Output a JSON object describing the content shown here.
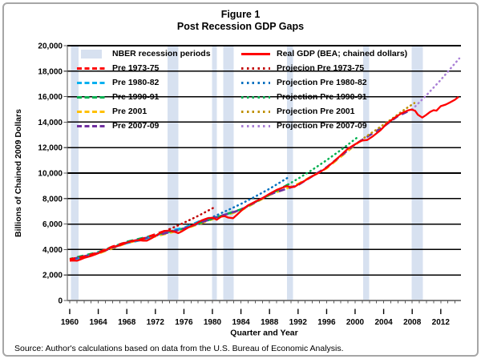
{
  "figure": {
    "title_line1": "Figure 1",
    "title_line2": "Post Recession GDP Gaps",
    "source": "Source: Author's calculations based on data from the U.S. Bureau of Economic Analysis."
  },
  "chart_data": {
    "type": "line",
    "title": "Figure 1 - Post Recession GDP Gaps",
    "xlabel": "Quarter and Year",
    "ylabel": "Billions of Chained 2009 Dollars",
    "x_quarter_marker": "I",
    "xlim": [
      1959.7,
      2014.9
    ],
    "ylim": [
      0,
      20000
    ],
    "grid": "horizontal-black",
    "legend_position": "top-inside-two-columns",
    "band_color": "#D7E1F0",
    "y_ticks": [
      {
        "value": 0,
        "label": "0"
      },
      {
        "value": 2000,
        "label": "2,000"
      },
      {
        "value": 4000,
        "label": "4,000"
      },
      {
        "value": 6000,
        "label": "6,000"
      },
      {
        "value": 8000,
        "label": "8,000"
      },
      {
        "value": 10000,
        "label": "10,000"
      },
      {
        "value": 12000,
        "label": "12,000"
      },
      {
        "value": 14000,
        "label": "14,000"
      },
      {
        "value": 16000,
        "label": "16,000"
      },
      {
        "value": 18000,
        "label": "18,000"
      },
      {
        "value": 20000,
        "label": "20,000"
      }
    ],
    "x_ticks": [
      {
        "value": 1960,
        "label": "1960"
      },
      {
        "value": 1964,
        "label": "1964"
      },
      {
        "value": 1968,
        "label": "1968"
      },
      {
        "value": 1972,
        "label": "1972"
      },
      {
        "value": 1976,
        "label": "1976"
      },
      {
        "value": 1980,
        "label": "1980"
      },
      {
        "value": 1984,
        "label": "1984"
      },
      {
        "value": 1988,
        "label": "1988"
      },
      {
        "value": 1992,
        "label": "1992"
      },
      {
        "value": 1996,
        "label": "1996"
      },
      {
        "value": 2000,
        "label": "2000"
      },
      {
        "value": 2004,
        "label": "2004"
      },
      {
        "value": 2008,
        "label": "2008"
      },
      {
        "value": 2012,
        "label": "2012"
      }
    ],
    "x_minor_tick_step_years": 1,
    "recession_bands": [
      [
        1960.15,
        1961.25
      ],
      [
        1973.7,
        1975.25
      ],
      [
        1979.95,
        1980.6
      ],
      [
        1981.5,
        1983.0
      ],
      [
        1990.45,
        1991.3
      ],
      [
        2001.15,
        2001.95
      ],
      [
        2007.9,
        2009.5
      ]
    ],
    "series": [
      {
        "name": "pre-2001-trend",
        "label": "Pre 2001",
        "color": "#FFC000",
        "style": "dash",
        "points": [
          [
            1960,
            3150
          ],
          [
            1964,
            3680
          ],
          [
            1968,
            4510
          ],
          [
            1972,
            5030
          ],
          [
            1976,
            5590
          ],
          [
            1980,
            6380
          ],
          [
            1984,
            7060
          ],
          [
            1988,
            8280
          ],
          [
            1992,
            9150
          ],
          [
            1996,
            10380
          ],
          [
            2000,
            12200
          ],
          [
            2001.3,
            12780
          ]
        ]
      },
      {
        "name": "pre-1990-91-trend",
        "label": "Pre 1990-91",
        "color": "#00B050",
        "style": "dash",
        "points": [
          [
            1960,
            3260
          ],
          [
            1964,
            3800
          ],
          [
            1968,
            4610
          ],
          [
            1972,
            5140
          ],
          [
            1976,
            5660
          ],
          [
            1980,
            6420
          ],
          [
            1984,
            7150
          ],
          [
            1988,
            8310
          ],
          [
            1990.6,
            9100
          ]
        ]
      },
      {
        "name": "pre-1980-82-trend",
        "label": "Pre 1980-82",
        "color": "#00B0F0",
        "style": "dash",
        "points": [
          [
            1960,
            3180
          ],
          [
            1962,
            3370
          ],
          [
            1964,
            3740
          ],
          [
            1966,
            4170
          ],
          [
            1968,
            4500
          ],
          [
            1970,
            4740
          ],
          [
            1972,
            5090
          ],
          [
            1974,
            5480
          ],
          [
            1976,
            5700
          ],
          [
            1978,
            6180
          ],
          [
            1980.2,
            6600
          ]
        ]
      },
      {
        "name": "pre-2007-09-trend",
        "label": "Pre 2007-09",
        "color": "#7030A0",
        "style": "dash",
        "points": [
          [
            1960,
            3210
          ],
          [
            1964,
            3730
          ],
          [
            1968,
            4560
          ],
          [
            1972,
            5080
          ],
          [
            1976,
            5640
          ],
          [
            1980,
            6440
          ],
          [
            1984,
            7120
          ],
          [
            1988,
            8330
          ],
          [
            1992,
            9060
          ],
          [
            1996,
            10450
          ],
          [
            2000,
            12260
          ],
          [
            2004,
            13660
          ],
          [
            2006,
            14480
          ],
          [
            2008,
            15000
          ]
        ]
      },
      {
        "name": "pre-1973-75-trend",
        "label": "Pre 1973-75",
        "color": "#FF0000",
        "style": "dash",
        "points": [
          [
            1960,
            3230
          ],
          [
            1962,
            3450
          ],
          [
            1964,
            3770
          ],
          [
            1966,
            4230
          ],
          [
            1968,
            4580
          ],
          [
            1970,
            4800
          ],
          [
            1972,
            5200
          ],
          [
            1974,
            5600
          ]
        ]
      },
      {
        "name": "projection-pre-1973-75",
        "label": "Projecion Pre 1973-75",
        "color": "#C00000",
        "style": "dot",
        "points": [
          [
            1974,
            5600
          ],
          [
            1976,
            6100
          ],
          [
            1978,
            6640
          ],
          [
            1980.3,
            7320
          ]
        ]
      },
      {
        "name": "projection-pre-1980-82",
        "label": "Projection Pre 1980-82",
        "color": "#0070C0",
        "style": "dot",
        "points": [
          [
            1980.2,
            6600
          ],
          [
            1982,
            7050
          ],
          [
            1984,
            7580
          ],
          [
            1986,
            8160
          ],
          [
            1988,
            8770
          ],
          [
            1990.6,
            9650
          ]
        ]
      },
      {
        "name": "projection-pre-1990-91",
        "label": "Projection Pre 1990-91",
        "color": "#00B050",
        "style": "dot",
        "points": [
          [
            1990.6,
            9100
          ],
          [
            1992,
            9560
          ],
          [
            1994,
            10260
          ],
          [
            1996,
            11010
          ],
          [
            1998,
            11810
          ],
          [
            2000.3,
            12800
          ]
        ]
      },
      {
        "name": "projection-pre-2001",
        "label": "Projection Pre 2001",
        "color": "#BF9000",
        "style": "dot",
        "points": [
          [
            2001.3,
            12780
          ],
          [
            2003,
            13420
          ],
          [
            2005,
            14200
          ],
          [
            2007,
            15020
          ],
          [
            2008.3,
            15500
          ]
        ]
      },
      {
        "name": "projection-pre-2007-09",
        "label": "Projection Pre 2007-09",
        "color": "#A97FD6",
        "style": "dot",
        "points": [
          [
            2008,
            15000
          ],
          [
            2010,
            16115
          ],
          [
            2012,
            17315
          ],
          [
            2014.6,
            19000
          ]
        ]
      },
      {
        "name": "real-gdp",
        "label": "Real GDP (BEA; chained dollars)",
        "color": "#FF0000",
        "style": "solid",
        "points": [
          [
            1960,
            3120
          ],
          [
            1960.5,
            3140
          ],
          [
            1961,
            3120
          ],
          [
            1961.5,
            3220
          ],
          [
            1962,
            3340
          ],
          [
            1963,
            3500
          ],
          [
            1964,
            3710
          ],
          [
            1965,
            3950
          ],
          [
            1966,
            4200
          ],
          [
            1967,
            4330
          ],
          [
            1968,
            4540
          ],
          [
            1969,
            4700
          ],
          [
            1969.8,
            4730
          ],
          [
            1970.3,
            4700
          ],
          [
            1970.8,
            4690
          ],
          [
            1971.5,
            4900
          ],
          [
            1972,
            5060
          ],
          [
            1972.7,
            5290
          ],
          [
            1973.3,
            5460
          ],
          [
            1973.8,
            5480
          ],
          [
            1974.3,
            5440
          ],
          [
            1974.8,
            5380
          ],
          [
            1975.2,
            5290
          ],
          [
            1975.7,
            5420
          ],
          [
            1976.5,
            5690
          ],
          [
            1977.5,
            5970
          ],
          [
            1978.5,
            6290
          ],
          [
            1979.3,
            6450
          ],
          [
            1980.1,
            6500
          ],
          [
            1980.6,
            6340
          ],
          [
            1981.2,
            6580
          ],
          [
            1981.7,
            6620
          ],
          [
            1982.2,
            6510
          ],
          [
            1982.9,
            6460
          ],
          [
            1983.5,
            6760
          ],
          [
            1984.3,
            7180
          ],
          [
            1985,
            7470
          ],
          [
            1986,
            7760
          ],
          [
            1987,
            8020
          ],
          [
            1988,
            8370
          ],
          [
            1989,
            8680
          ],
          [
            1990.4,
            8980
          ],
          [
            1991,
            8890
          ],
          [
            1991.5,
            8920
          ],
          [
            1992,
            9100
          ],
          [
            1993,
            9420
          ],
          [
            1994,
            9760
          ],
          [
            1995,
            10050
          ],
          [
            1996,
            10420
          ],
          [
            1997,
            10900
          ],
          [
            1998,
            11400
          ],
          [
            1999,
            11920
          ],
          [
            2000.5,
            12430
          ],
          [
            2001,
            12560
          ],
          [
            2001.7,
            12600
          ],
          [
            2002.5,
            12900
          ],
          [
            2003.5,
            13340
          ],
          [
            2004.5,
            13920
          ],
          [
            2005.5,
            14330
          ],
          [
            2006.5,
            14700
          ],
          [
            2007.4,
            14920
          ],
          [
            2007.9,
            14990
          ],
          [
            2008.4,
            14890
          ],
          [
            2008.8,
            14580
          ],
          [
            2009.4,
            14360
          ],
          [
            2009.9,
            14540
          ],
          [
            2010.5,
            14800
          ],
          [
            2011,
            14940
          ],
          [
            2011.4,
            14900
          ],
          [
            2012,
            15250
          ],
          [
            2012.7,
            15380
          ],
          [
            2013.4,
            15580
          ],
          [
            2014,
            15760
          ],
          [
            2014.5,
            15980
          ]
        ]
      }
    ],
    "legend": {
      "left": [
        {
          "label": "NBER recession periods",
          "swatch": "fill",
          "color": "#D7E1F0"
        },
        {
          "label": "Pre 1973-75",
          "swatch": "dash",
          "color": "#FF0000"
        },
        {
          "label": "Pre 1980-82",
          "swatch": "dash",
          "color": "#00B0F0"
        },
        {
          "label": "Pre 1990-91",
          "swatch": "dash",
          "color": "#00B050"
        },
        {
          "label": "Pre 2001",
          "swatch": "dash",
          "color": "#FFC000"
        },
        {
          "label": "Pre 2007-09",
          "swatch": "dash",
          "color": "#7030A0"
        }
      ],
      "right": [
        {
          "label": "Real GDP (BEA; chained dollars)",
          "swatch": "solid",
          "color": "#FF0000"
        },
        {
          "label": "Projecion Pre 1973-75",
          "swatch": "dot",
          "color": "#C00000"
        },
        {
          "label": "Projection Pre 1980-82",
          "swatch": "dot",
          "color": "#0070C0"
        },
        {
          "label": "Projection Pre 1990-91",
          "swatch": "dot",
          "color": "#00B050"
        },
        {
          "label": "Projection Pre 2001",
          "swatch": "dot",
          "color": "#BF9000"
        },
        {
          "label": "Projection Pre 2007-09",
          "swatch": "dot",
          "color": "#A97FD6"
        }
      ]
    }
  }
}
